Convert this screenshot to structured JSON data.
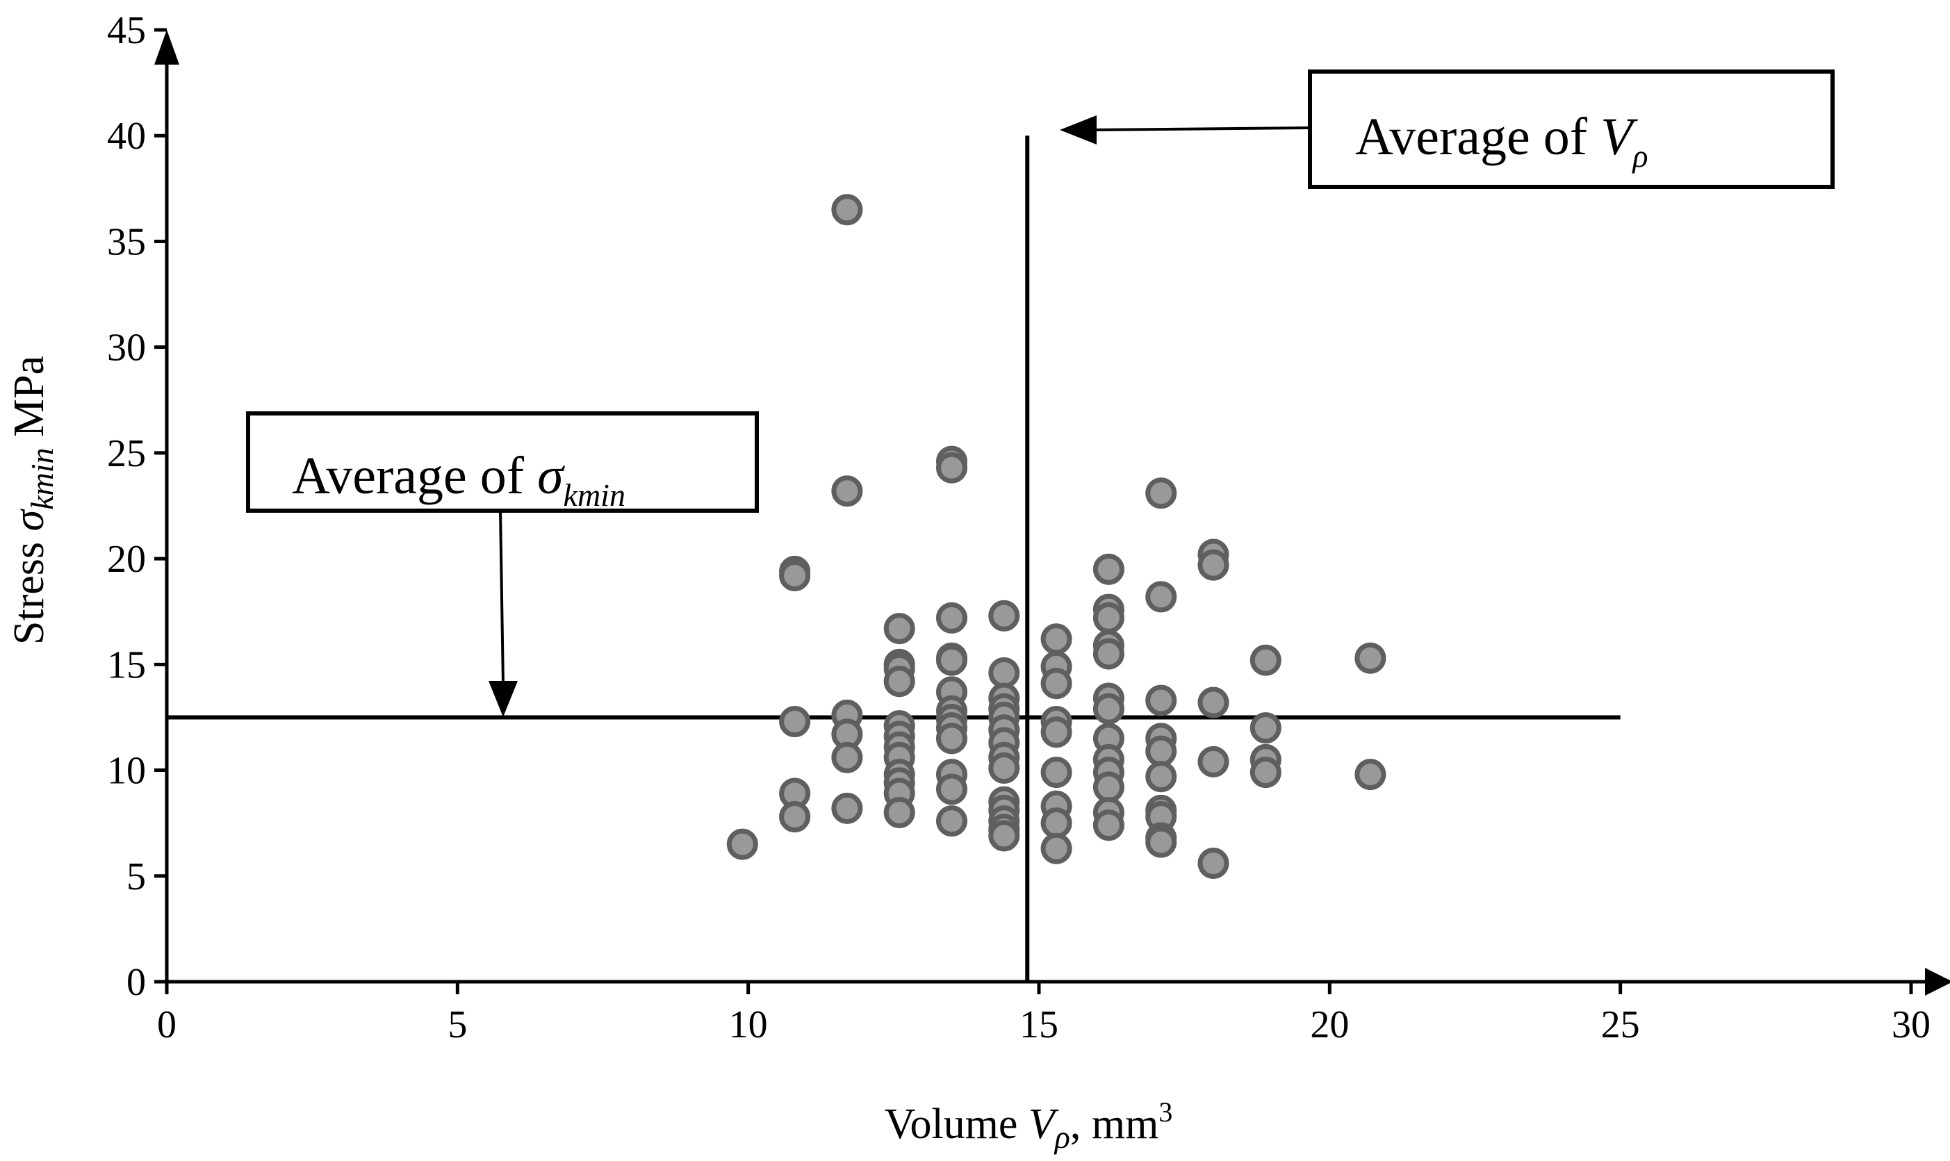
{
  "chart_data": {
    "type": "scatter",
    "xlabel": {
      "prefix": "Volume ",
      "var": "V",
      "sub": "ρ",
      "suffix": ", mm",
      "sup": "3"
    },
    "ylabel": {
      "prefix": "Stress ",
      "var": "σ",
      "sub": "kmin",
      "suffix": " MPa"
    },
    "xlim": [
      0,
      30
    ],
    "ylim": [
      0,
      45
    ],
    "x_ticks": [
      0,
      5,
      10,
      15,
      20,
      25,
      30
    ],
    "y_ticks": [
      0,
      5,
      10,
      15,
      20,
      25,
      30,
      35,
      40,
      45
    ],
    "grid": false,
    "reference_lines": {
      "average_v": {
        "x": 14.8,
        "y_from": 0,
        "y_to": 40
      },
      "average_sigma": {
        "y": 12.5,
        "x_from": 0,
        "x_to": 25
      }
    },
    "annotations": {
      "avg_v": {
        "prefix": "Average of ",
        "var": "V",
        "sub": "ρ"
      },
      "avg_sigma": {
        "prefix": "Average of ",
        "var": "σ",
        "sub": "kmin"
      }
    },
    "points": [
      [
        9.9,
        6.5
      ],
      [
        10.8,
        19.4
      ],
      [
        10.8,
        19.2
      ],
      [
        10.8,
        12.3
      ],
      [
        10.8,
        8.9
      ],
      [
        10.8,
        7.8
      ],
      [
        11.7,
        36.5
      ],
      [
        11.7,
        23.2
      ],
      [
        11.7,
        12.6
      ],
      [
        11.7,
        11.7
      ],
      [
        11.7,
        10.6
      ],
      [
        11.7,
        8.2
      ],
      [
        12.6,
        16.7
      ],
      [
        12.6,
        15.0
      ],
      [
        12.6,
        14.8
      ],
      [
        12.6,
        14.2
      ],
      [
        12.6,
        12.1
      ],
      [
        12.6,
        11.6
      ],
      [
        12.6,
        11.1
      ],
      [
        12.6,
        10.6
      ],
      [
        12.6,
        9.8
      ],
      [
        12.6,
        9.4
      ],
      [
        12.6,
        8.9
      ],
      [
        12.6,
        8.0
      ],
      [
        13.5,
        24.6
      ],
      [
        13.5,
        24.3
      ],
      [
        13.5,
        17.2
      ],
      [
        13.5,
        15.3
      ],
      [
        13.5,
        15.2
      ],
      [
        13.5,
        13.7
      ],
      [
        13.5,
        12.8
      ],
      [
        13.5,
        12.4
      ],
      [
        13.5,
        12.0
      ],
      [
        13.5,
        11.5
      ],
      [
        13.5,
        9.8
      ],
      [
        13.5,
        9.1
      ],
      [
        13.5,
        7.6
      ],
      [
        14.4,
        17.3
      ],
      [
        14.4,
        14.6
      ],
      [
        14.4,
        13.4
      ],
      [
        14.4,
        12.9
      ],
      [
        14.4,
        12.5
      ],
      [
        14.4,
        11.9
      ],
      [
        14.4,
        11.3
      ],
      [
        14.4,
        10.6
      ],
      [
        14.4,
        10.1
      ],
      [
        14.4,
        8.5
      ],
      [
        14.4,
        8.1
      ],
      [
        14.4,
        7.6
      ],
      [
        14.4,
        7.2
      ],
      [
        14.4,
        6.9
      ],
      [
        15.3,
        16.2
      ],
      [
        15.3,
        14.9
      ],
      [
        15.3,
        14.1
      ],
      [
        15.3,
        12.3
      ],
      [
        15.3,
        11.8
      ],
      [
        15.3,
        9.9
      ],
      [
        15.3,
        8.3
      ],
      [
        15.3,
        7.5
      ],
      [
        15.3,
        6.3
      ],
      [
        16.2,
        19.5
      ],
      [
        16.2,
        17.6
      ],
      [
        16.2,
        17.2
      ],
      [
        16.2,
        15.9
      ],
      [
        16.2,
        15.5
      ],
      [
        16.2,
        13.4
      ],
      [
        16.2,
        12.9
      ],
      [
        16.2,
        11.5
      ],
      [
        16.2,
        10.5
      ],
      [
        16.2,
        9.9
      ],
      [
        16.2,
        9.2
      ],
      [
        16.2,
        8.0
      ],
      [
        16.2,
        7.4
      ],
      [
        17.1,
        23.1
      ],
      [
        17.1,
        18.2
      ],
      [
        17.1,
        13.3
      ],
      [
        17.1,
        11.5
      ],
      [
        17.1,
        10.9
      ],
      [
        17.1,
        9.7
      ],
      [
        17.1,
        8.1
      ],
      [
        17.1,
        7.8
      ],
      [
        17.1,
        6.8
      ],
      [
        17.1,
        6.6
      ],
      [
        18.0,
        20.2
      ],
      [
        18.0,
        19.7
      ],
      [
        18.0,
        13.2
      ],
      [
        18.0,
        10.4
      ],
      [
        18.0,
        5.6
      ],
      [
        18.9,
        15.2
      ],
      [
        18.9,
        12.0
      ],
      [
        18.9,
        10.5
      ],
      [
        18.9,
        9.9
      ],
      [
        20.7,
        15.3
      ],
      [
        20.7,
        9.8
      ]
    ]
  }
}
